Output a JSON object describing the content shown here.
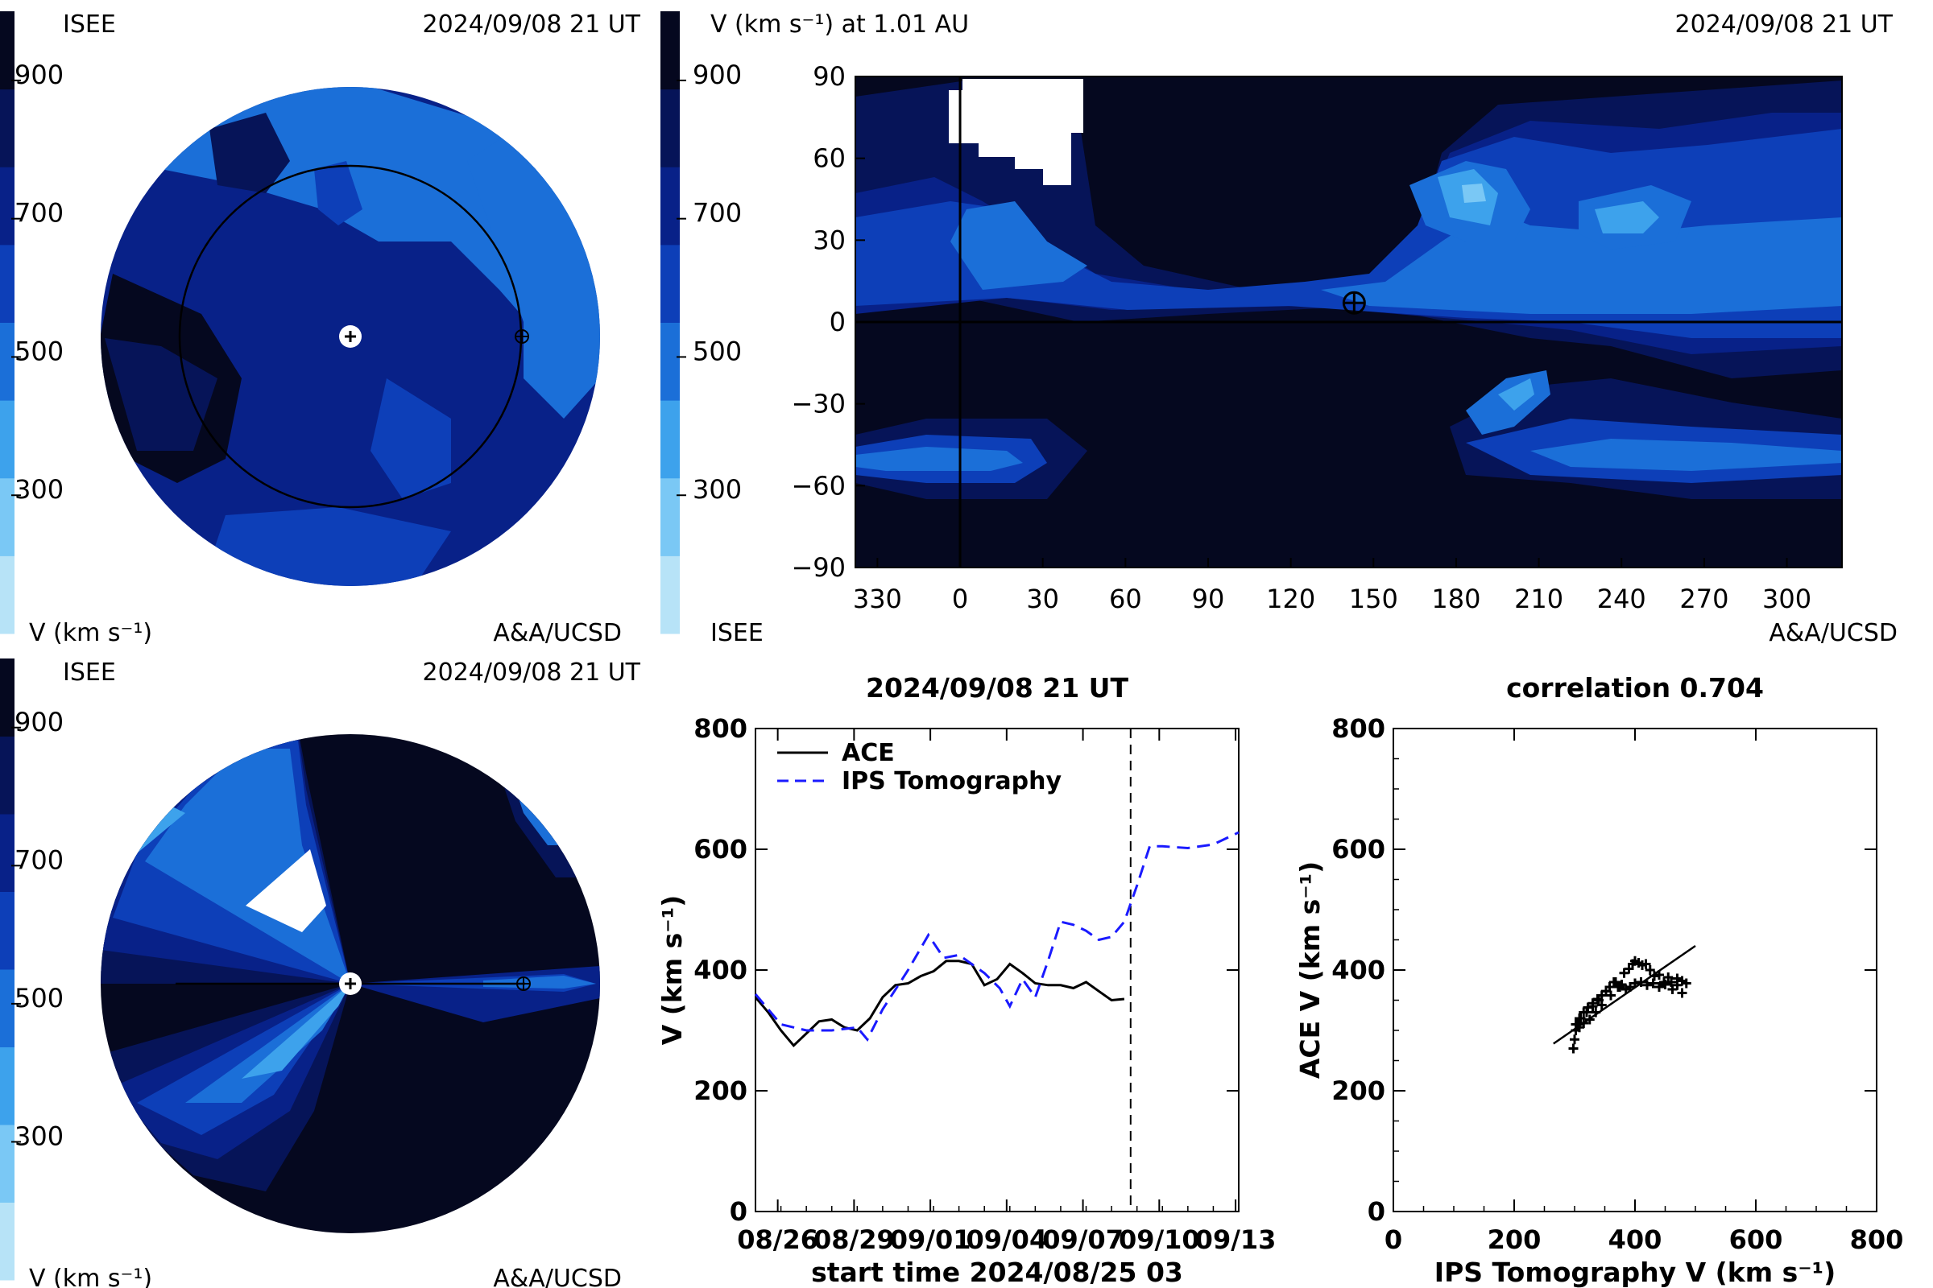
{
  "colors": {
    "scale": [
      "#b7e3f7",
      "#7ac8f5",
      "#3da2ec",
      "#1b6fd8",
      "#0d3fb8",
      "#082188",
      "#061458",
      "#05081f"
    ],
    "ace_line": "#000000",
    "ips_line": "#1a1aff"
  },
  "colorbar": {
    "ticks": [
      "900",
      "700",
      "500",
      "300"
    ],
    "tick_values": [
      900,
      700,
      500,
      300
    ]
  },
  "panels": {
    "ecliptic_top": {
      "label_tl": "ISEE",
      "timestamp": "2024/09/08 21 UT",
      "label_bl": "V (km s⁻¹)",
      "credit": "A&A/UCSD"
    },
    "map": {
      "title": "V (km s⁻¹) at 1.01 AU",
      "timestamp": "2024/09/08 21 UT",
      "label_bl": "ISEE",
      "credit": "A&A/UCSD"
    },
    "meridional_bottom": {
      "label_tl": "ISEE",
      "timestamp": "2024/09/08 21 UT",
      "label_bl": "V (km s⁻¹)",
      "credit": "A&A/UCSD"
    }
  },
  "chart_data": [
    {
      "type": "heatmap",
      "name": "velocity-map",
      "title": "V (km s⁻¹) at 1.01 AU",
      "xticks": [
        "330",
        "0",
        "30",
        "60",
        "90",
        "120",
        "150",
        "180",
        "210",
        "240",
        "270",
        "300"
      ],
      "xtick_values": [
        330,
        360,
        390,
        420,
        450,
        480,
        510,
        540,
        570,
        600,
        630,
        660
      ],
      "yticks": [
        "90",
        "60",
        "30",
        "0",
        "−30",
        "−60",
        "−90"
      ],
      "ytick_values": [
        90,
        60,
        30,
        0,
        -30,
        -60,
        -90
      ],
      "xlim": [
        322,
        680
      ],
      "ylim": [
        -90,
        90
      ],
      "earth_longitude": 143,
      "earth_latitude": 7
    },
    {
      "type": "line",
      "name": "time-series",
      "title": "2024/09/08 21 UT",
      "xlabel": "start time 2024/08/25 03",
      "ylabel": "V (km s⁻¹)",
      "xticks": [
        "08/26",
        "08/29",
        "09/01",
        "09/04",
        "09/07",
        "09/10",
        "09/13"
      ],
      "xtick_values": [
        0.875,
        3.875,
        6.875,
        9.875,
        12.875,
        15.875,
        18.875
      ],
      "xlim": [
        0,
        19
      ],
      "yticks": [
        "0",
        "200",
        "400",
        "600",
        "800"
      ],
      "ylim": [
        0,
        800
      ],
      "marker_day": 14.75,
      "series": [
        {
          "name": "ACE",
          "x": [
            0,
            0.5,
            1,
            1.5,
            2,
            2.5,
            3,
            3.5,
            4,
            4.5,
            5,
            5.5,
            6,
            6.5,
            7,
            7.5,
            8,
            8.5,
            9,
            9.5,
            10,
            10.5,
            11,
            11.5,
            12,
            12.5,
            13,
            13.5,
            14,
            14.5
          ],
          "values": [
            355,
            330,
            300,
            275,
            295,
            315,
            318,
            305,
            300,
            320,
            355,
            375,
            378,
            390,
            398,
            415,
            415,
            410,
            375,
            385,
            410,
            395,
            378,
            375,
            375,
            370,
            380,
            365,
            350,
            352
          ]
        },
        {
          "name": "IPS Tomography",
          "x": [
            0,
            1,
            2,
            3,
            4,
            4.4,
            5,
            6,
            6.8,
            7.4,
            8,
            8.5,
            9,
            9.6,
            10,
            10.5,
            11,
            11.5,
            12,
            12.5,
            13,
            13.5,
            14,
            14.5,
            15,
            15.5,
            16,
            17,
            18,
            19
          ],
          "values": [
            360,
            310,
            300,
            300,
            305,
            285,
            335,
            400,
            458,
            420,
            425,
            410,
            395,
            370,
            340,
            385,
            355,
            415,
            480,
            475,
            465,
            450,
            455,
            480,
            540,
            605,
            605,
            602,
            608,
            628
          ]
        }
      ]
    },
    {
      "type": "scatter",
      "name": "correlation",
      "title": "correlation 0.704",
      "xlabel": "IPS Tomography V (km s⁻¹)",
      "ylabel": "ACE V (km s⁻¹)",
      "xticks": [
        "0",
        "200",
        "400",
        "600",
        "800"
      ],
      "yticks": [
        "0",
        "200",
        "400",
        "600",
        "800"
      ],
      "xlim": [
        0,
        800
      ],
      "ylim": [
        0,
        800
      ],
      "x": [
        298,
        300,
        302,
        305,
        308,
        310,
        315,
        320,
        325,
        330,
        335,
        340,
        345,
        352,
        360,
        368,
        375,
        382,
        390,
        396,
        400,
        406,
        412,
        418,
        425,
        432,
        440,
        448,
        455,
        462,
        470,
        478,
        485,
        478,
        470,
        460,
        450,
        440,
        430,
        420,
        410,
        400,
        392,
        385,
        378,
        372,
        365,
        358,
        352,
        345,
        338,
        330,
        322,
        315,
        308,
        302
      ],
      "values": [
        270,
        285,
        300,
        310,
        305,
        320,
        312,
        330,
        318,
        340,
        330,
        350,
        342,
        365,
        358,
        380,
        372,
        395,
        402,
        410,
        415,
        412,
        408,
        410,
        400,
        390,
        392,
        380,
        388,
        368,
        375,
        362,
        378,
        382,
        386,
        380,
        376,
        372,
        378,
        375,
        380,
        378,
        372,
        368,
        376,
        372,
        380,
        372,
        365,
        358,
        352,
        345,
        338,
        330,
        320,
        310
      ],
      "fit_x": [
        265,
        500
      ],
      "fit_y": [
        278,
        440
      ]
    }
  ]
}
